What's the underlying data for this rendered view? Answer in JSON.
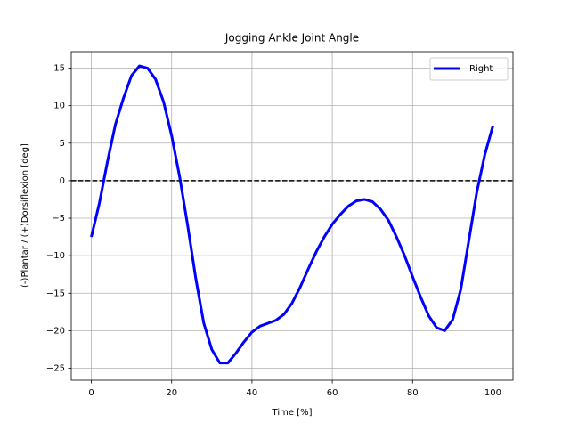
{
  "chart_data": {
    "type": "line",
    "title": "Jogging Ankle Joint Angle",
    "x_label": "Time [%]",
    "y_label": "(-)Plantar / (+)Dorsiflexion [deg]",
    "x": [
      0,
      2,
      4,
      6,
      8,
      10,
      12,
      14,
      16,
      18,
      20,
      22,
      24,
      26,
      28,
      30,
      32,
      34,
      36,
      38,
      40,
      42,
      44,
      46,
      48,
      50,
      52,
      54,
      56,
      58,
      60,
      62,
      64,
      66,
      68,
      70,
      72,
      74,
      76,
      78,
      80,
      82,
      84,
      86,
      88,
      90,
      92,
      94,
      96,
      98,
      100
    ],
    "series": [
      {
        "name": "Right",
        "color": "#0000ff",
        "values": [
          -7.5,
          -3,
          2.5,
          7.5,
          11,
          14,
          15.3,
          15,
          13.5,
          10.5,
          6,
          0.5,
          -6,
          -13,
          -19,
          -22.5,
          -24.3,
          -24.3,
          -23,
          -21.5,
          -20.2,
          -19.4,
          -19,
          -18.6,
          -17.8,
          -16.3,
          -14.2,
          -11.8,
          -9.5,
          -7.5,
          -5.8,
          -4.5,
          -3.4,
          -2.7,
          -2.5,
          -2.8,
          -3.8,
          -5.3,
          -7.5,
          -10,
          -12.8,
          -15.5,
          -18,
          -19.6,
          -20,
          -18.5,
          -14.5,
          -8,
          -1.5,
          3.5,
          7.3
        ]
      }
    ],
    "reference_line": {
      "y": 0,
      "color": "#000000",
      "style": "dashed"
    },
    "xlim": [
      -5,
      105
    ],
    "ylim": [
      -26.6,
      17.2
    ],
    "xticks": [
      0,
      20,
      40,
      60,
      80,
      100
    ],
    "yticks": [
      {
        "value": -25,
        "label": "−25"
      },
      {
        "value": -20,
        "label": "−20"
      },
      {
        "value": -15,
        "label": "−15"
      },
      {
        "value": -10,
        "label": "−10"
      },
      {
        "value": -5,
        "label": "−5"
      },
      0,
      5,
      10,
      15
    ],
    "grid": true,
    "legend_position": "upper right"
  }
}
